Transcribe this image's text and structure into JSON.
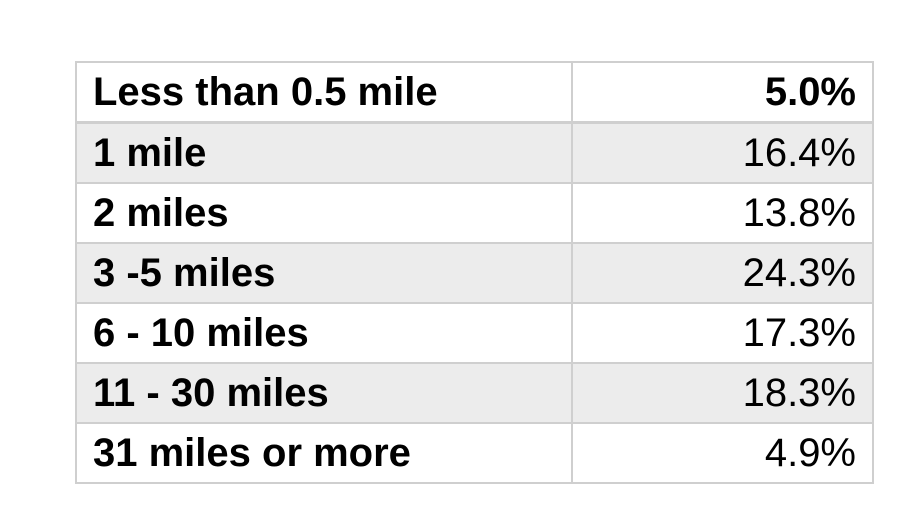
{
  "table": {
    "rows": [
      {
        "label": "Less than 0.5 mile",
        "value": "5.0%"
      },
      {
        "label": "1 mile",
        "value": "16.4%"
      },
      {
        "label": "2 miles",
        "value": "13.8%"
      },
      {
        "label": "3 -5 miles",
        "value": "24.3%"
      },
      {
        "label": "6 - 10 miles",
        "value": "17.3%"
      },
      {
        "label": "11 - 30 miles",
        "value": "18.3%"
      },
      {
        "label": "31 miles or more",
        "value": "4.9%"
      }
    ]
  },
  "colors": {
    "border": "#cfcfcf",
    "stripe": "#ececec"
  }
}
